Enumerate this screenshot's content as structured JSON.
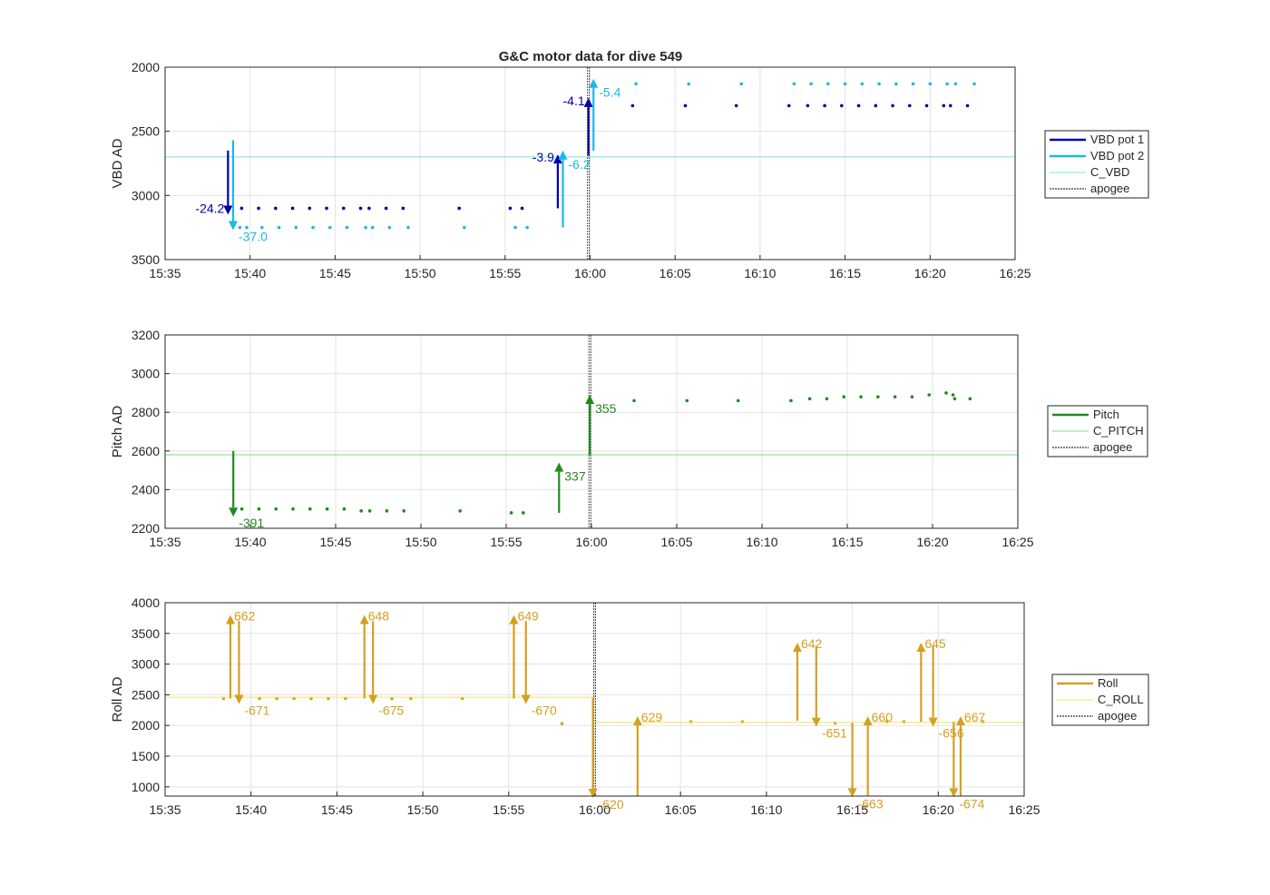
{
  "title": "G&C motor data for dive 549",
  "chart_data": [
    {
      "type": "line",
      "name": "vbd",
      "ylabel": "VBD AD",
      "ylim": [
        2000,
        3500
      ],
      "yticks": [
        2000,
        2500,
        3000,
        3500
      ],
      "ydir": "reverse",
      "xlim": [
        "15:35",
        "16:25"
      ],
      "xticks": [
        "15:35",
        "15:40",
        "15:45",
        "15:50",
        "15:55",
        "16:00",
        "16:05",
        "16:10",
        "16:15",
        "16:20",
        "16:25"
      ],
      "grid": true,
      "legend_position": "right",
      "series": [
        {
          "name": "VBD pot 1",
          "color": "#0000aa",
          "x": [
            "15:39.5",
            "15:40.5",
            "15:41.5",
            "15:42.5",
            "15:43.5",
            "15:44.5",
            "15:45.5",
            "15:46.5",
            "15:47",
            "15:48",
            "15:49",
            "15:52.3",
            "15:55.3",
            "15:56",
            "16:02.5",
            "16:05.6",
            "16:08.6",
            "16:11.7",
            "16:12.8",
            "16:13.8",
            "16:14.8",
            "16:15.8",
            "16:16.8",
            "16:17.8",
            "16:18.8",
            "16:19.8",
            "16:20.8",
            "16:21.2",
            "16:22.2"
          ],
          "y": [
            3100,
            3100,
            3100,
            3100,
            3100,
            3100,
            3100,
            3100,
            3100,
            3100,
            3100,
            3100,
            3100,
            3100,
            2300,
            2300,
            2300,
            2300,
            2300,
            2300,
            2300,
            2300,
            2300,
            2300,
            2300,
            2300,
            2300,
            2300,
            2300
          ]
        },
        {
          "name": "VBD pot 2",
          "color": "#1ab8e8",
          "x": [
            "15:39.4",
            "15:39.8",
            "15:40.7",
            "15:41.7",
            "15:42.7",
            "15:43.7",
            "15:44.7",
            "15:45.7",
            "15:46.8",
            "15:47.2",
            "15:48.2",
            "15:49.3",
            "15:52.6",
            "15:55.6",
            "15:56.3",
            "16:02.7",
            "16:05.8",
            "16:08.9",
            "16:12",
            "16:13",
            "16:14",
            "16:15",
            "16:16",
            "16:17",
            "16:18",
            "16:19",
            "16:20",
            "16:21",
            "16:21.5",
            "16:22.6"
          ],
          "y": [
            3250,
            3250,
            3250,
            3250,
            3250,
            3250,
            3250,
            3250,
            3250,
            3250,
            3250,
            3250,
            3250,
            3250,
            3250,
            2130,
            2130,
            2130,
            2130,
            2130,
            2130,
            2130,
            2130,
            2130,
            2130,
            2130,
            2130,
            2130,
            2130,
            2130
          ]
        },
        {
          "name": "C_VBD",
          "color": "#7fe0ea",
          "value": 2700
        },
        {
          "name": "apogee",
          "color": "#555555",
          "x_value": "15:59.9"
        }
      ],
      "arrows": [
        {
          "x": "15:38.7",
          "from": 2650,
          "to": 3150,
          "color": "#0000aa",
          "label": "-24.2",
          "label_side": "left"
        },
        {
          "x": "15:39",
          "from": 2570,
          "to": 3270,
          "color": "#1ab8e8",
          "label": "-37.0",
          "label_side": "right"
        },
        {
          "x": "15:58.1",
          "from": 3100,
          "to": 2680,
          "color": "#0000aa",
          "label": "-3.9",
          "label_side": "left"
        },
        {
          "x": "15:58.4",
          "from": 3250,
          "to": 2650,
          "color": "#1ab8e8",
          "label": "-6.2",
          "label_side": "right"
        },
        {
          "x": "15:59.9",
          "from": 2690,
          "to": 2240,
          "color": "#0000aa",
          "label": "-4.1",
          "label_side": "left"
        },
        {
          "x": "16:00.2",
          "from": 2650,
          "to": 2090,
          "color": "#1ab8e8",
          "label": "-5.4",
          "label_side": "right"
        }
      ]
    },
    {
      "type": "line",
      "name": "pitch",
      "ylabel": "Pitch AD",
      "ylim": [
        2200,
        3200
      ],
      "yticks": [
        2200,
        2400,
        2600,
        2800,
        3000,
        3200
      ],
      "xlim": [
        "15:35",
        "16:25"
      ],
      "xticks": [
        "15:35",
        "15:40",
        "15:45",
        "15:50",
        "15:55",
        "16:00",
        "16:05",
        "16:10",
        "16:15",
        "16:20",
        "16:25"
      ],
      "grid": true,
      "legend_position": "right",
      "series": [
        {
          "name": "Pitch",
          "color": "#208a20",
          "x": [
            "15:39.5",
            "15:40.5",
            "15:41.5",
            "15:42.5",
            "15:43.5",
            "15:44.5",
            "15:45.5",
            "15:46.5",
            "15:47",
            "15:48",
            "15:49",
            "15:52.3",
            "15:55.3",
            "15:56",
            "16:02.5",
            "16:05.6",
            "16:08.6",
            "16:11.7",
            "16:12.8",
            "16:13.8",
            "16:14.8",
            "16:15.8",
            "16:16.8",
            "16:17.8",
            "16:18.8",
            "16:19.8",
            "16:20.8",
            "16:21.2",
            "16:21.3",
            "16:22.2"
          ],
          "y": [
            2300,
            2300,
            2300,
            2300,
            2300,
            2300,
            2300,
            2290,
            2290,
            2290,
            2290,
            2290,
            2280,
            2280,
            2860,
            2860,
            2860,
            2860,
            2870,
            2870,
            2880,
            2880,
            2880,
            2880,
            2880,
            2890,
            2900,
            2890,
            2870,
            2870
          ]
        },
        {
          "name": "C_PITCH",
          "color": "#7fdc7f",
          "value": 2580
        },
        {
          "name": "apogee",
          "color": "#555555",
          "x_value": "15:59.9"
        }
      ],
      "arrows": [
        {
          "x": "15:39",
          "from": 2600,
          "to": 2260,
          "color": "#208a20",
          "label": "-391",
          "label_side": "right"
        },
        {
          "x": "15:58.1",
          "from": 2280,
          "to": 2540,
          "color": "#208a20",
          "label": "337",
          "label_side": "right"
        },
        {
          "x": "15:59.9",
          "from": 2580,
          "to": 2890,
          "color": "#208a20",
          "label": "355",
          "label_side": "right"
        }
      ]
    },
    {
      "type": "line",
      "name": "roll",
      "ylabel": "Roll AD",
      "ylim": [
        850,
        4000
      ],
      "yticks": [
        1000,
        1500,
        2000,
        2500,
        3000,
        3500,
        4000
      ],
      "xlim": [
        "15:35",
        "16:25"
      ],
      "xticks": [
        "15:35",
        "15:40",
        "15:45",
        "15:50",
        "15:55",
        "16:00",
        "16:05",
        "16:10",
        "16:15",
        "16:20",
        "16:25"
      ],
      "grid": true,
      "legend_position": "right",
      "series": [
        {
          "name": "Roll",
          "color": "#d4a020",
          "x": [
            "15:38.4",
            "15:40.5",
            "15:41.5",
            "15:42.5",
            "15:43.5",
            "15:44.5",
            "15:45.5",
            "15:48.2",
            "15:49.3",
            "15:52.3",
            "15:58.1",
            "16:05.6",
            "16:08.6",
            "16:14",
            "16:17",
            "16:18",
            "16:22.6"
          ],
          "y": [
            2440,
            2440,
            2440,
            2440,
            2440,
            2440,
            2440,
            2440,
            2440,
            2440,
            2030,
            2060,
            2060,
            2040,
            2060,
            2060,
            2060
          ]
        },
        {
          "name": "C_ROLL",
          "color": "#f0e060",
          "segments": [
            [
              "15:35",
              "16:00",
              2460
            ],
            [
              "16:00",
              "16:25",
              2050
            ]
          ]
        },
        {
          "name": "apogee",
          "color": "#555555",
          "x_value": "16:00"
        }
      ],
      "arrows": [
        {
          "x": "15:38.8",
          "from": 2440,
          "to": 3800,
          "color": "#d4a020",
          "label": "662",
          "label_side": "right-top"
        },
        {
          "x": "15:39.3",
          "from": 3700,
          "to": 2350,
          "color": "#d4a020",
          "label": "-671",
          "label_side": "right"
        },
        {
          "x": "15:46.6",
          "from": 2440,
          "to": 3800,
          "color": "#d4a020",
          "label": "648",
          "label_side": "right-top"
        },
        {
          "x": "15:47.1",
          "from": 3700,
          "to": 2350,
          "color": "#d4a020",
          "label": "-675",
          "label_side": "right"
        },
        {
          "x": "15:55.3",
          "from": 2440,
          "to": 3800,
          "color": "#d4a020",
          "label": "649",
          "label_side": "right-top"
        },
        {
          "x": "15:56",
          "from": 3700,
          "to": 2350,
          "color": "#d4a020",
          "label": "-670",
          "label_side": "right"
        },
        {
          "x": "15:59.9",
          "from": 2450,
          "to": 820,
          "color": "#d4a020",
          "label": "-620",
          "label_side": "right"
        },
        {
          "x": "16:02.5",
          "from": 850,
          "to": 2150,
          "color": "#d4a020",
          "label": "629",
          "label_side": "right-top"
        },
        {
          "x": "16:11.8",
          "from": 2080,
          "to": 3350,
          "color": "#d4a020",
          "label": "642",
          "label_side": "right-top"
        },
        {
          "x": "16:12.9",
          "from": 3300,
          "to": 1980,
          "color": "#d4a020",
          "label": "-651",
          "label_side": "right"
        },
        {
          "x": "16:15",
          "from": 2040,
          "to": 830,
          "color": "#d4a020",
          "label": "-663",
          "label_side": "right"
        },
        {
          "x": "16:15.9",
          "from": 850,
          "to": 2150,
          "color": "#d4a020",
          "label": "660",
          "label_side": "right-top"
        },
        {
          "x": "16:19",
          "from": 2060,
          "to": 3350,
          "color": "#d4a020",
          "label": "645",
          "label_side": "right-top"
        },
        {
          "x": "16:19.7",
          "from": 3300,
          "to": 1980,
          "color": "#d4a020",
          "label": "-656",
          "label_side": "right"
        },
        {
          "x": "16:20.9",
          "from": 2060,
          "to": 830,
          "color": "#d4a020",
          "label": "-674",
          "label_side": "right"
        },
        {
          "x": "16:21.3",
          "from": 850,
          "to": 2150,
          "color": "#d4a020",
          "label": "667",
          "label_side": "right-top"
        }
      ]
    }
  ]
}
